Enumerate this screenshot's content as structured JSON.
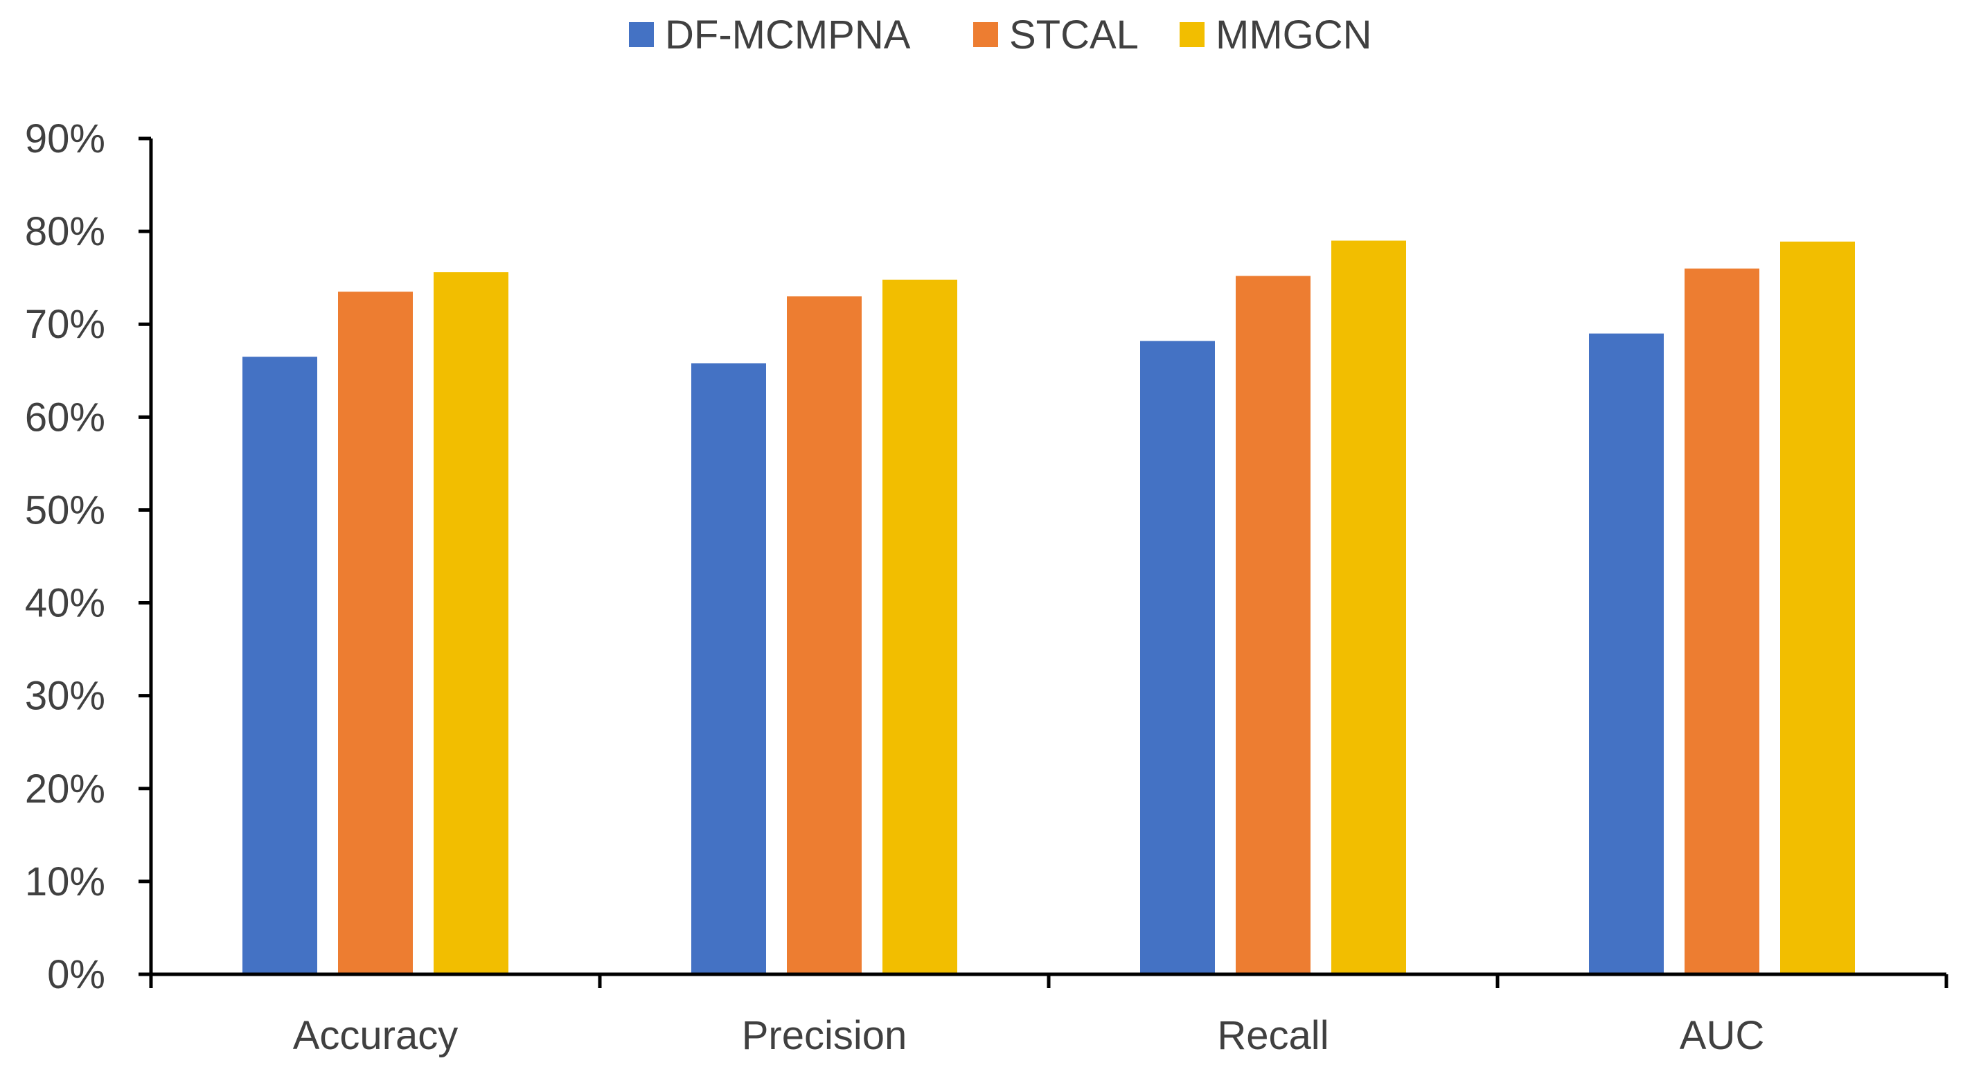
{
  "chart_data": {
    "type": "bar",
    "categories": [
      "Accuracy",
      "Precision",
      "Recall",
      "AUC"
    ],
    "series": [
      {
        "name": "DF-MCMPNA",
        "color": "#4472C4",
        "values": [
          66.5,
          65.8,
          68.2,
          69.0
        ]
      },
      {
        "name": "STCAL",
        "color": "#ED7D31",
        "values": [
          73.5,
          73.0,
          75.2,
          76.0
        ]
      },
      {
        "name": "MMGCN",
        "color": "#F2BE00",
        "values": [
          75.6,
          74.8,
          79.0,
          78.9
        ]
      }
    ],
    "yticks": [
      "0%",
      "10%",
      "20%",
      "30%",
      "40%",
      "50%",
      "60%",
      "70%",
      "80%",
      "90%"
    ],
    "ylim": [
      0,
      90
    ],
    "legend_position": "top-center",
    "grid": false
  }
}
